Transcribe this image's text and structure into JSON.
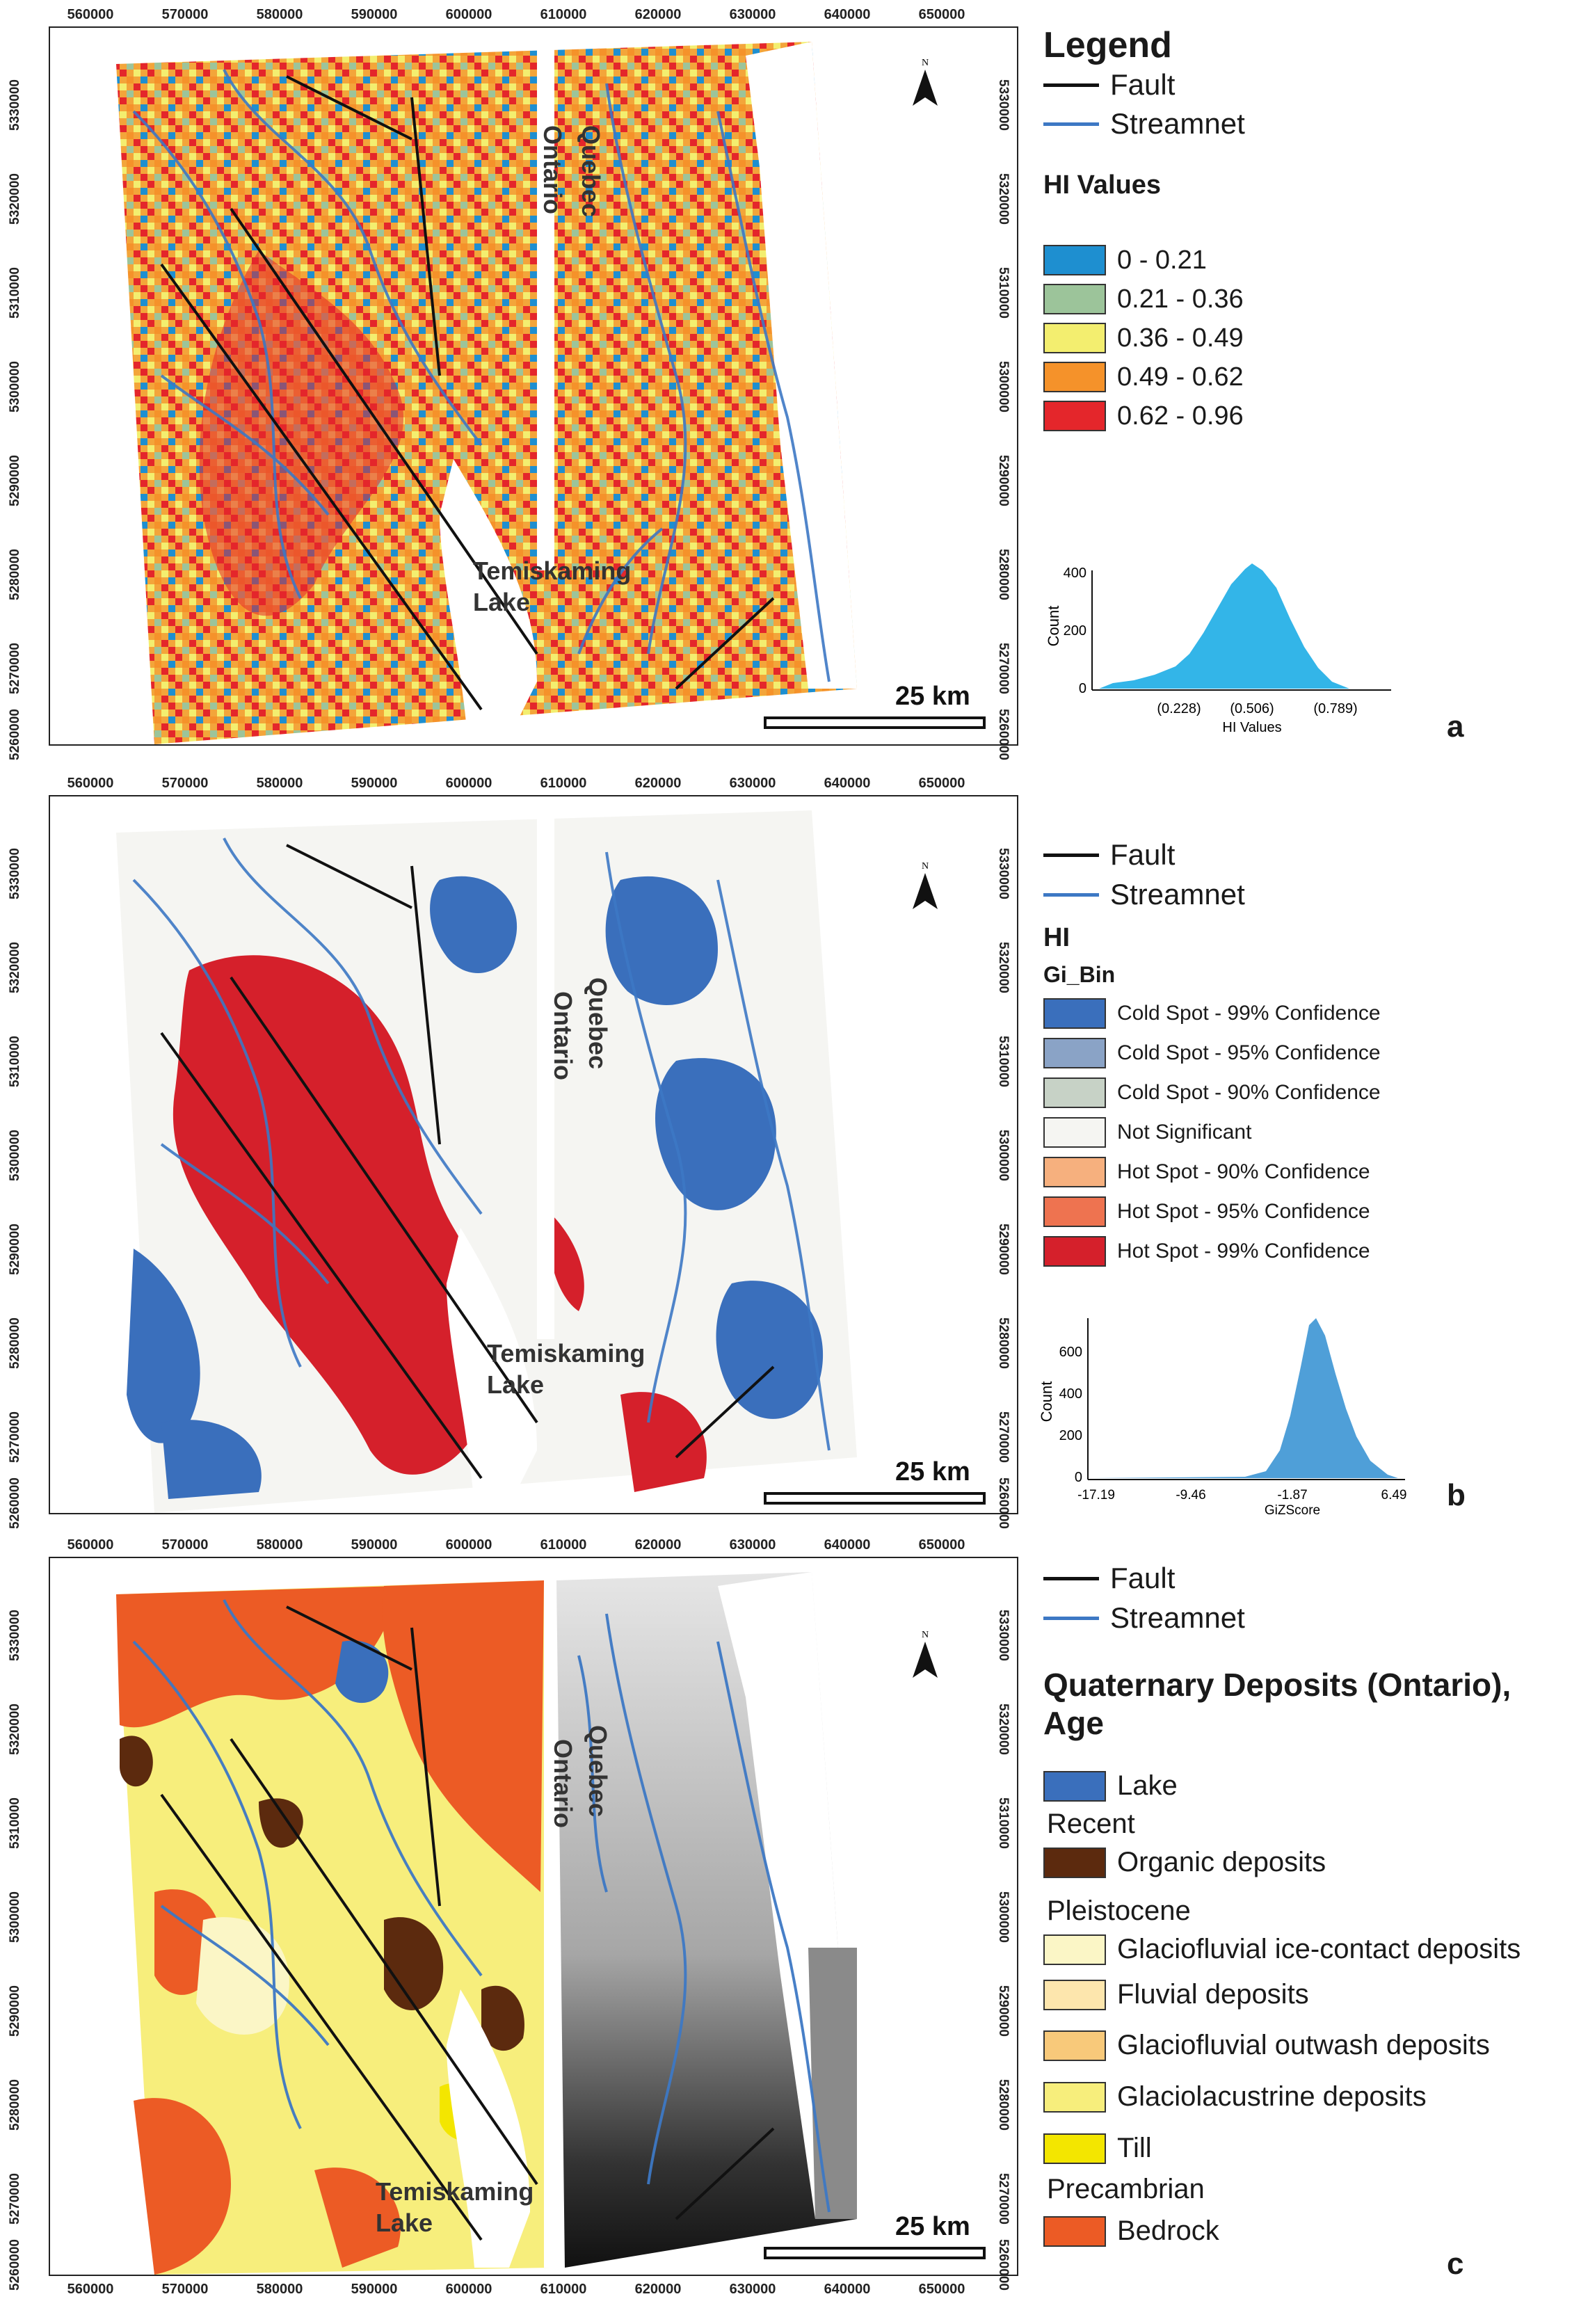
{
  "axes": {
    "x_ticks": [
      "560000",
      "570000",
      "580000",
      "590000",
      "600000",
      "610000",
      "620000",
      "630000",
      "640000",
      "650000"
    ],
    "y_ticks": [
      "5330000",
      "5320000",
      "5310000",
      "5300000",
      "5290000",
      "5280000",
      "5270000",
      "5260000"
    ]
  },
  "map_labels": {
    "ontario": "Ontario",
    "quebec": "Quebec",
    "lake_line1": "Temiskaming",
    "lake_line2": "Lake",
    "scale": "25 km",
    "north": "N"
  },
  "panel_a": {
    "letter": "a",
    "legend_title": "Legend",
    "fault": "Fault",
    "streamnet": "Streamnet",
    "hi_title": "HI Values",
    "classes": [
      {
        "label": "0 - 0.21",
        "color": "#1e8fd0"
      },
      {
        "label": "0.21 - 0.36",
        "color": "#9cc49a"
      },
      {
        "label": "0.36 - 0.49",
        "color": "#f3ee6f"
      },
      {
        "label": "0.49 - 0.62",
        "color": "#f5922a"
      },
      {
        "label": "0.62 - 0.96",
        "color": "#e4262b"
      }
    ],
    "hist": {
      "ylabel": "Count",
      "xlabel": "HI Values",
      "yticks": [
        "400",
        "200",
        "0"
      ],
      "xticks": [
        "(0.228)",
        "(0.506)",
        "(0.789)"
      ],
      "color": "#33b5e8"
    }
  },
  "panel_b": {
    "letter": "b",
    "fault": "Fault",
    "streamnet": "Streamnet",
    "hi_title": "HI",
    "gi_title": "Gi_Bin",
    "classes": [
      {
        "label": "Cold Spot - 99% Confidence",
        "color": "#3a6fbc"
      },
      {
        "label": "Cold Spot - 95% Confidence",
        "color": "#8aa3c6"
      },
      {
        "label": "Cold Spot - 90% Confidence",
        "color": "#c7d2c6"
      },
      {
        "label": "Not Significant",
        "color": "#f5f5f2"
      },
      {
        "label": "Hot Spot - 90% Confidence",
        "color": "#f6b07e"
      },
      {
        "label": "Hot Spot - 95% Confidence",
        "color": "#ee7350"
      },
      {
        "label": "Hot Spot - 99% Confidence",
        "color": "#d5202b"
      }
    ],
    "hist": {
      "ylabel": "Count",
      "xlabel": "GiZScore",
      "yticks": [
        "600",
        "400",
        "200",
        "0"
      ],
      "xticks": [
        "-17.19",
        "-9.46",
        "-1.87",
        "6.49"
      ],
      "color": "#4f9fd8"
    }
  },
  "panel_c": {
    "letter": "c",
    "fault": "Fault",
    "streamnet": "Streamnet",
    "title_line1": "Quaternary Deposits (Ontario),",
    "title_line2": "Age",
    "lake": {
      "label": "Lake",
      "color": "#3a6fbc"
    },
    "recent": "Recent",
    "organic": {
      "label": "Organic deposits",
      "color": "#5c2a0e"
    },
    "pleistocene": "Pleistocene",
    "pleist_classes": [
      {
        "label": "Glaciofluvial ice-contact deposits",
        "color": "#fbf6c6"
      },
      {
        "label": "Fluvial deposits",
        "color": "#fde6ad"
      },
      {
        "label": "Glaciofluvial outwash deposits",
        "color": "#f8c97a"
      },
      {
        "label": "Glaciolacustrine deposits",
        "color": "#f7ee7c"
      },
      {
        "label": "Till",
        "color": "#f3e600"
      }
    ],
    "precambrian": "Precambrian",
    "bedrock": {
      "label": "Bedrock",
      "color": "#ec5b25"
    }
  },
  "colors": {
    "fault": "#111111",
    "stream": "#3d78c4"
  }
}
